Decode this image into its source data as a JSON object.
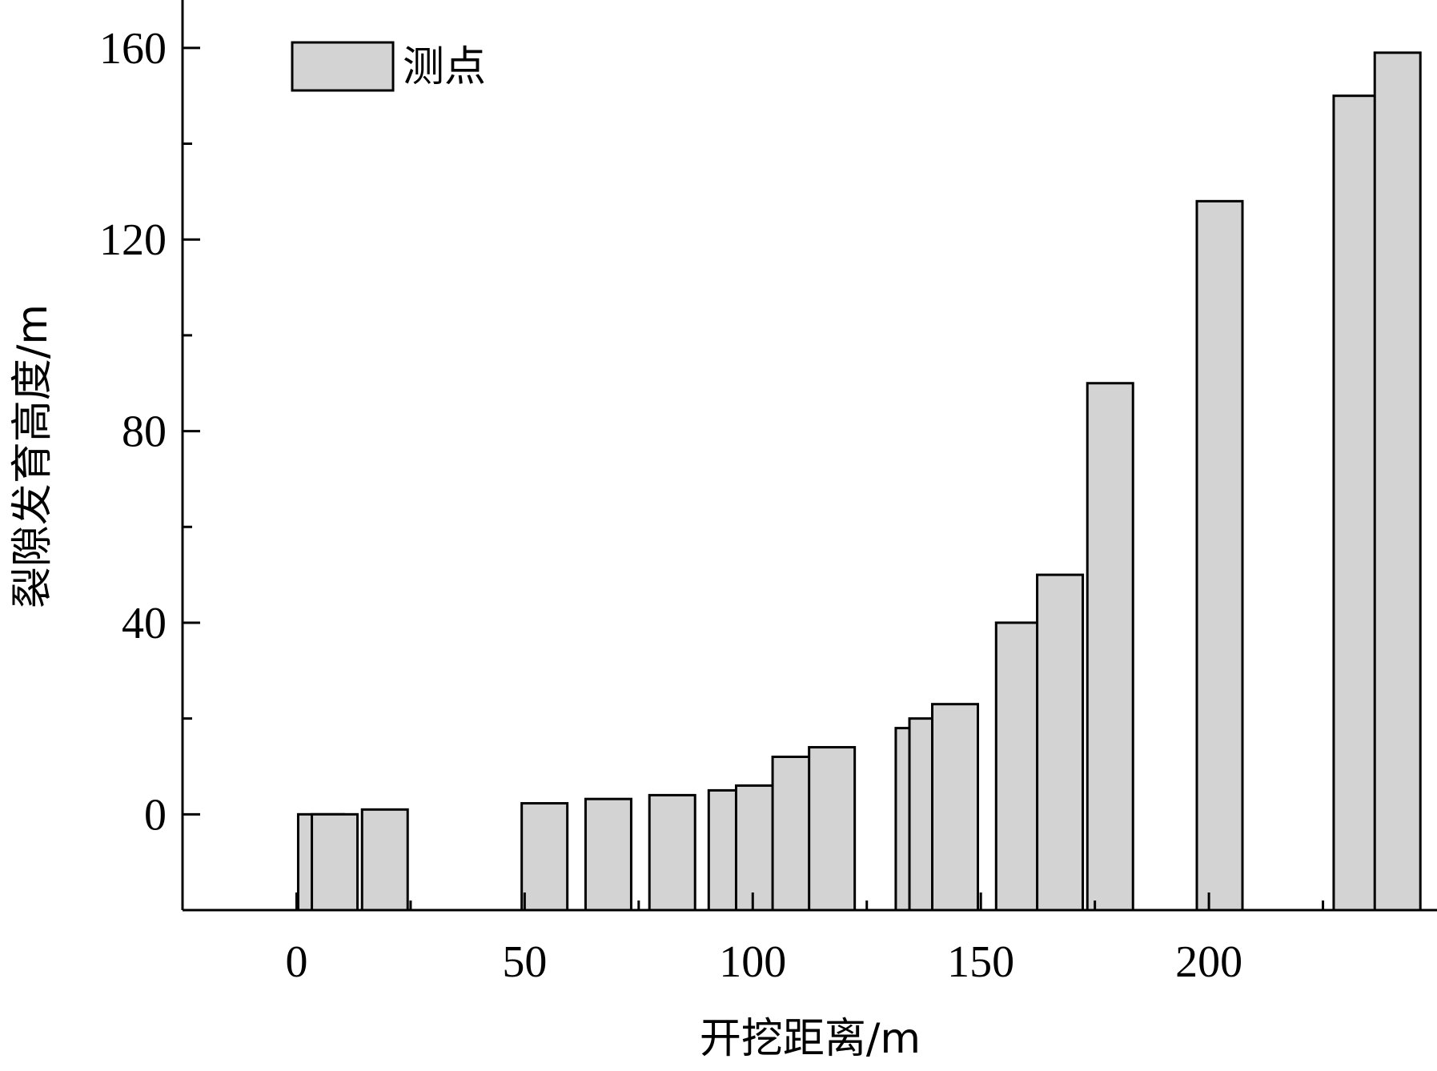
{
  "chart_data": {
    "type": "bar",
    "xlabel": "开挖距离/m",
    "ylabel": "裂隙发育高度/m",
    "xlim": [
      -25,
      250
    ],
    "ylim": [
      -20,
      170
    ],
    "xticks": [
      0,
      50,
      100,
      150,
      200
    ],
    "yticks": [
      0,
      40,
      80,
      120,
      160
    ],
    "legend": {
      "label": "测点",
      "position": "top-left"
    },
    "colors": {
      "bar_fill": "#d3d3d3",
      "bar_edge": "#000000"
    },
    "series": [
      {
        "name": "测点",
        "points": [
          {
            "x": 0,
            "y": 0
          },
          {
            "x": 3,
            "y": 0
          },
          {
            "x": 14,
            "y": 1
          },
          {
            "x": 49,
            "y": 2.3
          },
          {
            "x": 63,
            "y": 3.2
          },
          {
            "x": 77,
            "y": 4
          },
          {
            "x": 90,
            "y": 5
          },
          {
            "x": 96,
            "y": 6
          },
          {
            "x": 104,
            "y": 12
          },
          {
            "x": 112,
            "y": 14
          },
          {
            "x": 131,
            "y": 18
          },
          {
            "x": 134,
            "y": 20
          },
          {
            "x": 139,
            "y": 23
          },
          {
            "x": 153,
            "y": 40
          },
          {
            "x": 162,
            "y": 50
          },
          {
            "x": 173,
            "y": 90
          },
          {
            "x": 197,
            "y": 128
          },
          {
            "x": 227,
            "y": 150
          },
          {
            "x": 236,
            "y": 159
          }
        ]
      }
    ]
  }
}
